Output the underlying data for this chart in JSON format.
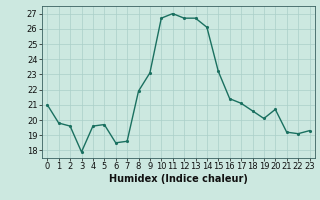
{
  "x": [
    0,
    1,
    2,
    3,
    4,
    5,
    6,
    7,
    8,
    9,
    10,
    11,
    12,
    13,
    14,
    15,
    16,
    17,
    18,
    19,
    20,
    21,
    22,
    23
  ],
  "y": [
    21.0,
    19.8,
    19.6,
    17.9,
    19.6,
    19.7,
    18.5,
    18.6,
    21.9,
    23.1,
    26.7,
    27.0,
    26.7,
    26.7,
    26.1,
    23.2,
    21.4,
    21.1,
    20.6,
    20.1,
    20.7,
    19.2,
    19.1,
    19.3
  ],
  "line_color": "#1a7060",
  "marker_color": "#1a7060",
  "bg_color": "#cce8e0",
  "grid_color": "#aacfc8",
  "xlabel": "Humidex (Indice chaleur)",
  "xlim": [
    -0.5,
    23.5
  ],
  "ylim": [
    17.5,
    27.5
  ],
  "yticks": [
    18,
    19,
    20,
    21,
    22,
    23,
    24,
    25,
    26,
    27
  ],
  "xticks": [
    0,
    1,
    2,
    3,
    4,
    5,
    6,
    7,
    8,
    9,
    10,
    11,
    12,
    13,
    14,
    15,
    16,
    17,
    18,
    19,
    20,
    21,
    22,
    23
  ],
  "tick_fontsize": 6.0,
  "xlabel_fontsize": 7.0,
  "linewidth": 1.0,
  "markersize": 2.5
}
